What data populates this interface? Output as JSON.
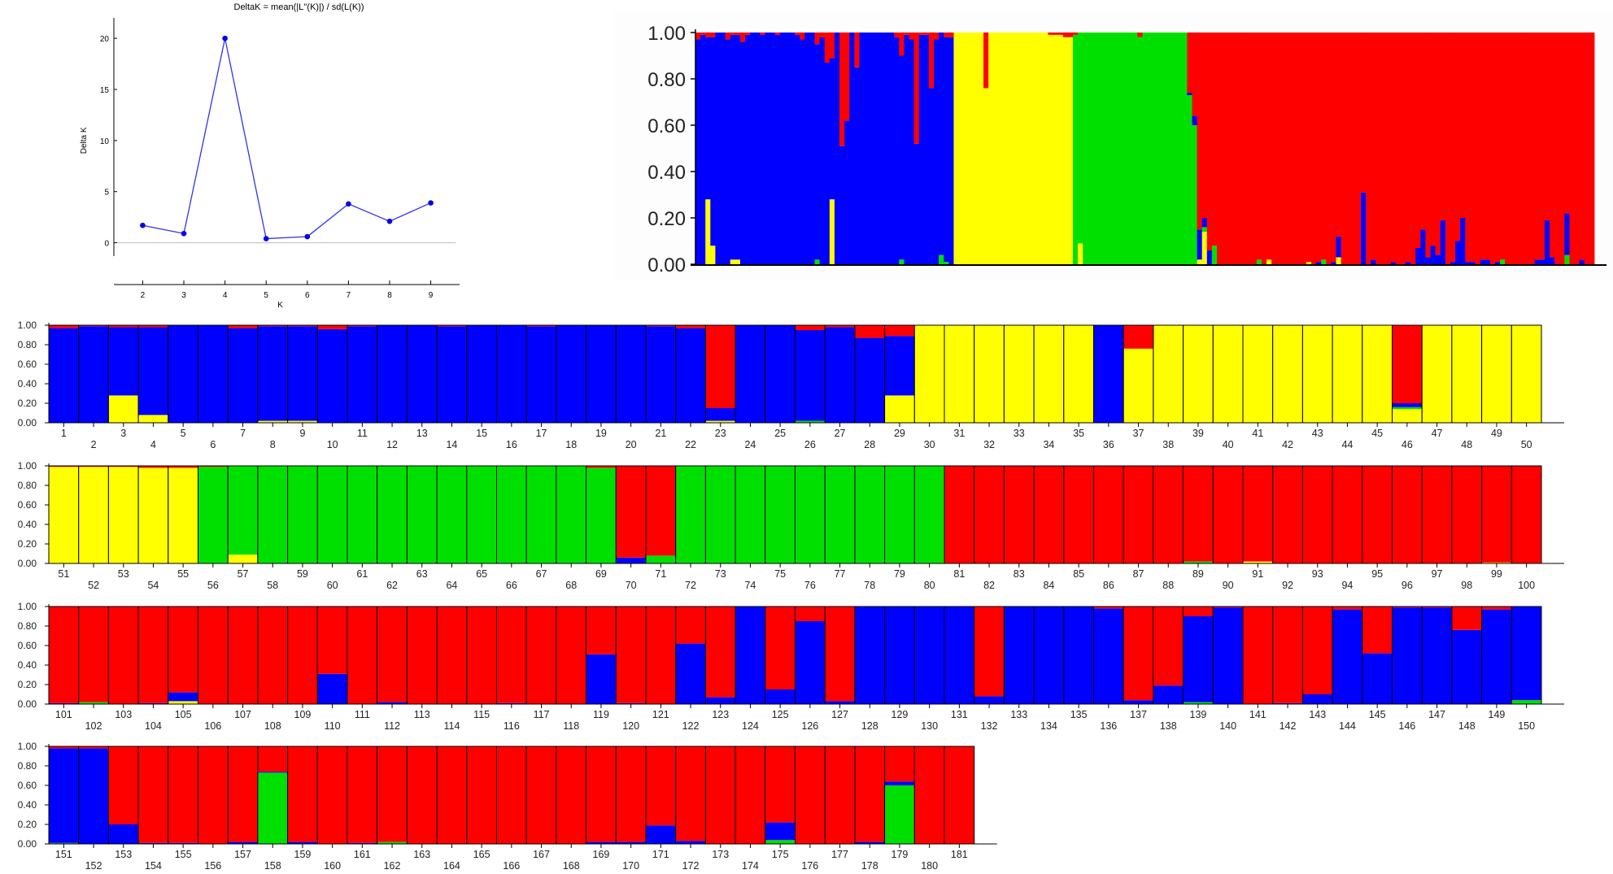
{
  "colors": {
    "red": "#ff0000",
    "blue": "#0000ff",
    "yellow": "#ffff00",
    "green": "#00e000",
    "line": "#3333ee",
    "dot": "#0000ee",
    "axis": "#000000",
    "zero": "#bbbbbb"
  },
  "chart_data": [
    {
      "id": "deltaK",
      "type": "line",
      "title": "DeltaK = mean(|L''(K)|) / sd(L(K))",
      "xlabel": "K",
      "ylabel": "Delta K",
      "x": [
        2,
        3,
        4,
        5,
        6,
        7,
        8,
        9
      ],
      "values": [
        1.7,
        0.9,
        20.0,
        0.4,
        0.6,
        3.8,
        2.1,
        3.9
      ],
      "xticks": [
        "2",
        "3",
        "4",
        "5",
        "6",
        "7",
        "8",
        "9"
      ],
      "yticks": [
        "0",
        "5",
        "10",
        "15",
        "20"
      ],
      "ylim": [
        -2.5,
        22
      ],
      "xlim": [
        1.3,
        9.7
      ],
      "grid": false,
      "zero_line": true
    },
    {
      "id": "structure_overview",
      "type": "bar",
      "subtype": "stacked_admixture_sorted",
      "title": "",
      "yticks": [
        "0.00",
        "0.20",
        "0.40",
        "0.60",
        "0.80",
        "1.00"
      ],
      "ylim": [
        0,
        1
      ],
      "clusters": [
        "blue",
        "yellow",
        "green",
        "red"
      ],
      "segments_by_position": [
        {
          "from": 0.0,
          "to": 0.265,
          "dominant": "blue"
        },
        {
          "from": 0.265,
          "to": 0.33,
          "dominant": "yellow"
        },
        {
          "from": 0.33,
          "to": 0.45,
          "dominant": "yellow"
        },
        {
          "from": 0.45,
          "to": 0.53,
          "dominant": "green"
        },
        {
          "from": 0.53,
          "to": 1.0,
          "dominant": "red"
        }
      ]
    },
    {
      "id": "structure_individuals",
      "type": "bar",
      "subtype": "stacked_admixture",
      "yticks": [
        "0.00",
        "0.20",
        "0.40",
        "0.60",
        "0.80",
        "1.00"
      ],
      "ylim": [
        0,
        1
      ],
      "series_order_bottom_to_top": [
        "yellow",
        "green",
        "blue",
        "red"
      ],
      "rows": [
        {
          "start": 1,
          "end": 50
        },
        {
          "start": 51,
          "end": 100
        },
        {
          "start": 101,
          "end": 150
        },
        {
          "start": 151,
          "end": 181
        }
      ],
      "individuals": {
        "1": {
          "blue": 0.97,
          "red": 0.03
        },
        "2": {
          "blue": 0.99,
          "red": 0.01
        },
        "3": {
          "yellow": 0.28,
          "blue": 0.7,
          "red": 0.02
        },
        "4": {
          "yellow": 0.08,
          "blue": 0.9,
          "red": 0.02
        },
        "5": {
          "blue": 1.0
        },
        "6": {
          "blue": 1.0
        },
        "7": {
          "blue": 0.97,
          "red": 0.03
        },
        "8": {
          "yellow": 0.02,
          "blue": 0.97,
          "red": 0.01
        },
        "9": {
          "yellow": 0.02,
          "blue": 0.97,
          "red": 0.01
        },
        "10": {
          "blue": 0.96,
          "red": 0.04
        },
        "11": {
          "blue": 0.99,
          "red": 0.01
        },
        "12": {
          "blue": 1.0
        },
        "13": {
          "blue": 1.0
        },
        "14": {
          "blue": 0.99,
          "red": 0.01
        },
        "15": {
          "blue": 1.0
        },
        "16": {
          "blue": 1.0
        },
        "17": {
          "blue": 0.99,
          "red": 0.01
        },
        "18": {
          "blue": 1.0
        },
        "19": {
          "blue": 1.0
        },
        "20": {
          "blue": 1.0
        },
        "21": {
          "blue": 0.99,
          "red": 0.01
        },
        "22": {
          "blue": 0.97,
          "red": 0.03
        },
        "23": {
          "yellow": 0.02,
          "blue": 0.13,
          "red": 0.85
        },
        "24": {
          "blue": 1.0
        },
        "25": {
          "blue": 1.0
        },
        "26": {
          "blue": 0.93,
          "green": 0.02,
          "red": 0.05
        },
        "27": {
          "blue": 0.98,
          "red": 0.02
        },
        "28": {
          "blue": 0.87,
          "red": 0.13
        },
        "29": {
          "yellow": 0.28,
          "blue": 0.61,
          "red": 0.11
        },
        "30": {
          "yellow": 1.0
        },
        "31": {
          "yellow": 1.0
        },
        "32": {
          "yellow": 1.0
        },
        "33": {
          "yellow": 1.0
        },
        "34": {
          "yellow": 1.0
        },
        "35": {
          "yellow": 1.0
        },
        "36": {
          "blue": 1.0
        },
        "37": {
          "yellow": 0.76,
          "red": 0.24
        },
        "38": {
          "yellow": 1.0
        },
        "39": {
          "yellow": 1.0
        },
        "40": {
          "yellow": 1.0
        },
        "41": {
          "yellow": 1.0
        },
        "42": {
          "yellow": 1.0
        },
        "43": {
          "yellow": 1.0
        },
        "44": {
          "yellow": 1.0
        },
        "45": {
          "yellow": 1.0
        },
        "46": {
          "yellow": 0.14,
          "blue": 0.04,
          "green": 0.02,
          "red": 0.8
        },
        "47": {
          "yellow": 1.0
        },
        "48": {
          "yellow": 1.0
        },
        "49": {
          "yellow": 1.0
        },
        "50": {
          "yellow": 1.0
        },
        "51": {
          "yellow": 0.99,
          "red": 0.01
        },
        "52": {
          "yellow": 0.99,
          "red": 0.01
        },
        "53": {
          "yellow": 0.99,
          "red": 0.01
        },
        "54": {
          "yellow": 0.98,
          "red": 0.02
        },
        "55": {
          "yellow": 0.98,
          "red": 0.02
        },
        "56": {
          "green": 0.99,
          "red": 0.01
        },
        "57": {
          "yellow": 0.09,
          "green": 0.91
        },
        "58": {
          "green": 1.0
        },
        "59": {
          "green": 1.0
        },
        "60": {
          "green": 1.0
        },
        "61": {
          "green": 1.0
        },
        "62": {
          "green": 1.0
        },
        "63": {
          "green": 1.0
        },
        "64": {
          "green": 1.0
        },
        "65": {
          "green": 1.0
        },
        "66": {
          "green": 1.0
        },
        "67": {
          "green": 1.0
        },
        "68": {
          "green": 1.0
        },
        "69": {
          "green": 0.98,
          "red": 0.02
        },
        "70": {
          "blue": 0.06,
          "red": 0.94
        },
        "71": {
          "green": 0.08,
          "red": 0.92
        },
        "72": {
          "green": 1.0
        },
        "73": {
          "green": 1.0
        },
        "74": {
          "green": 1.0
        },
        "75": {
          "green": 1.0
        },
        "76": {
          "green": 1.0
        },
        "77": {
          "green": 1.0
        },
        "78": {
          "green": 1.0
        },
        "79": {
          "green": 1.0
        },
        "80": {
          "green": 1.0
        },
        "81": {
          "red": 1.0
        },
        "82": {
          "red": 1.0
        },
        "83": {
          "red": 1.0
        },
        "84": {
          "red": 1.0
        },
        "85": {
          "red": 1.0
        },
        "86": {
          "red": 1.0
        },
        "87": {
          "red": 1.0
        },
        "88": {
          "red": 1.0
        },
        "89": {
          "green": 0.02,
          "red": 0.98
        },
        "90": {
          "red": 1.0
        },
        "91": {
          "yellow": 0.02,
          "red": 0.98
        },
        "92": {
          "red": 1.0
        },
        "93": {
          "red": 1.0
        },
        "94": {
          "red": 1.0
        },
        "95": {
          "red": 1.0
        },
        "96": {
          "red": 1.0
        },
        "97": {
          "red": 1.0
        },
        "98": {
          "red": 1.0
        },
        "99": {
          "yellow": 0.01,
          "red": 0.99
        },
        "100": {
          "red": 1.0
        },
        "101": {
          "blue": 0.01,
          "red": 0.99
        },
        "102": {
          "green": 0.02,
          "red": 0.98
        },
        "103": {
          "red": 1.0
        },
        "104": {
          "blue": 0.01,
          "red": 0.99
        },
        "105": {
          "yellow": 0.03,
          "blue": 0.09,
          "red": 0.88
        },
        "106": {
          "red": 1.0
        },
        "107": {
          "red": 1.0
        },
        "108": {
          "red": 1.0
        },
        "109": {
          "red": 1.0
        },
        "110": {
          "blue": 0.31,
          "red": 0.69
        },
        "111": {
          "red": 1.0
        },
        "112": {
          "blue": 0.02,
          "red": 0.98
        },
        "113": {
          "red": 1.0
        },
        "114": {
          "red": 1.0
        },
        "115": {
          "red": 1.0
        },
        "116": {
          "blue": 0.01,
          "red": 0.99
        },
        "117": {
          "red": 1.0
        },
        "118": {
          "red": 1.0
        },
        "119": {
          "blue": 0.51,
          "red": 0.49
        },
        "120": {
          "blue": 0.01,
          "red": 0.99
        },
        "121": {
          "red": 1.0
        },
        "122": {
          "blue": 0.62,
          "red": 0.38
        },
        "123": {
          "blue": 0.07,
          "red": 0.93
        },
        "124": {
          "blue": 1.0
        },
        "125": {
          "blue": 0.15,
          "red": 0.85
        },
        "126": {
          "blue": 0.85,
          "red": 0.15
        },
        "127": {
          "blue": 0.03,
          "red": 0.97
        },
        "128": {
          "blue": 1.0
        },
        "129": {
          "blue": 1.0
        },
        "130": {
          "blue": 1.0
        },
        "131": {
          "blue": 1.0
        },
        "132": {
          "blue": 0.08,
          "red": 0.92
        },
        "133": {
          "blue": 1.0
        },
        "134": {
          "blue": 1.0
        },
        "135": {
          "blue": 1.0
        },
        "136": {
          "blue": 0.98,
          "red": 0.02
        },
        "137": {
          "blue": 0.04,
          "red": 0.96
        },
        "138": {
          "blue": 0.19,
          "red": 0.81
        },
        "139": {
          "blue": 0.88,
          "green": 0.02,
          "red": 0.1
        },
        "140": {
          "blue": 0.99,
          "red": 0.01
        },
        "141": {
          "red": 1.0
        },
        "142": {
          "blue": 0.01,
          "red": 0.99
        },
        "143": {
          "blue": 0.1,
          "red": 0.9
        },
        "144": {
          "blue": 0.97,
          "red": 0.03
        },
        "145": {
          "blue": 0.52,
          "red": 0.48
        },
        "146": {
          "blue": 0.99,
          "red": 0.01
        },
        "147": {
          "blue": 0.99,
          "red": 0.01
        },
        "148": {
          "blue": 0.76,
          "red": 0.24
        },
        "149": {
          "blue": 0.97,
          "red": 0.03
        },
        "150": {
          "blue": 0.96,
          "green": 0.04
        },
        "151": {
          "green": 0.01,
          "blue": 0.97,
          "red": 0.02
        },
        "152": {
          "blue": 0.98,
          "red": 0.02
        },
        "153": {
          "blue": 0.2,
          "red": 0.8
        },
        "154": {
          "blue": 0.01,
          "red": 0.99
        },
        "155": {
          "blue": 0.01,
          "red": 0.99
        },
        "156": {
          "red": 1.0
        },
        "157": {
          "blue": 0.02,
          "red": 0.98
        },
        "158": {
          "blue": 0.01,
          "green": 0.73,
          "red": 0.26
        },
        "159": {
          "blue": 0.02,
          "red": 0.98
        },
        "160": {
          "red": 1.0
        },
        "161": {
          "blue": 0.01,
          "red": 0.99
        },
        "162": {
          "green": 0.02,
          "red": 0.98
        },
        "163": {
          "red": 1.0
        },
        "164": {
          "red": 1.0
        },
        "165": {
          "red": 1.0
        },
        "166": {
          "red": 1.0
        },
        "167": {
          "red": 1.0
        },
        "168": {
          "red": 1.0
        },
        "169": {
          "blue": 0.02,
          "red": 0.98
        },
        "170": {
          "blue": 0.02,
          "red": 0.98
        },
        "171": {
          "blue": 0.19,
          "red": 0.81
        },
        "172": {
          "blue": 0.03,
          "red": 0.97
        },
        "173": {
          "red": 1.0
        },
        "174": {
          "red": 1.0
        },
        "175": {
          "blue": 0.18,
          "green": 0.04,
          "red": 0.78
        },
        "176": {
          "red": 1.0
        },
        "177": {
          "red": 1.0
        },
        "178": {
          "blue": 0.02,
          "red": 0.98
        },
        "179": {
          "blue": 0.04,
          "green": 0.6,
          "red": 0.36
        },
        "180": {
          "red": 1.0
        },
        "181": {
          "red": 1.0
        }
      }
    }
  ]
}
